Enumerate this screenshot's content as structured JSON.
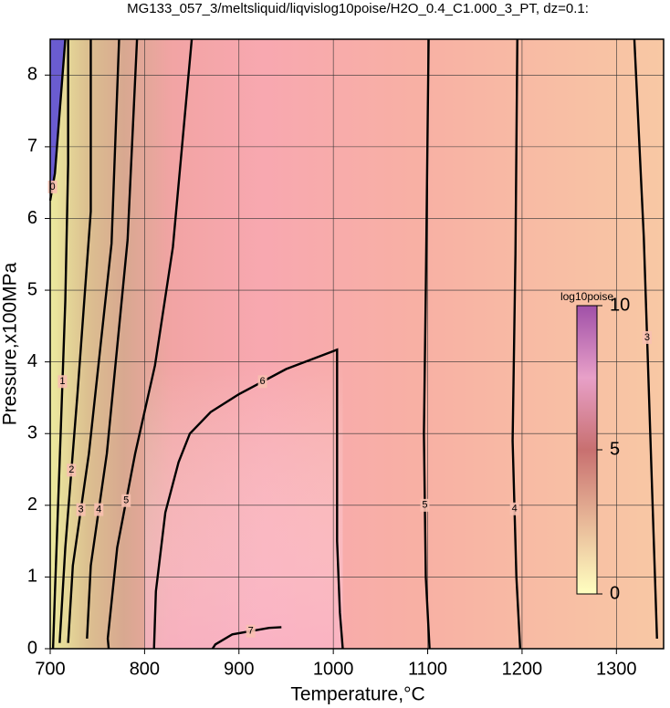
{
  "chart_data": {
    "type": "contour",
    "title": "MG133_057_3/meltsliquid/liqvislog10poise/H2O_0.4_C1.000_3_PT, dz=0.1:",
    "xlabel": "Temperature,°C",
    "ylabel": "Pressure,x100MPa",
    "xlim": [
      700,
      1350
    ],
    "ylim": [
      0,
      8.5
    ],
    "xticks": [
      700,
      800,
      900,
      1000,
      1100,
      1200,
      1300
    ],
    "yticks": [
      0,
      1,
      2,
      3,
      4,
      5,
      6,
      7,
      8
    ],
    "grid": true,
    "contours": [
      {
        "level": 0,
        "x": [
          716,
          705,
          700
        ],
        "y": [
          8.5,
          6.63,
          6.25
        ]
      },
      {
        "level": 1,
        "x": [
          719,
          719,
          716,
          710,
          705,
          703
        ],
        "y": [
          8.5,
          6.76,
          4.85,
          2.6,
          0.78,
          0
        ]
      },
      {
        "level": 2,
        "x": [
          743,
          743,
          729,
          716,
          710
        ],
        "y": [
          8.5,
          6.1,
          3.57,
          1.41,
          0.08
        ]
      },
      {
        "level": 3,
        "x": [
          773,
          765,
          741,
          724,
          719
        ],
        "y": [
          8.5,
          5.65,
          2.72,
          1.16,
          0.08
        ]
      },
      {
        "level": 4,
        "x": [
          792,
          782,
          760,
          743,
          739
        ],
        "y": [
          8.5,
          5.7,
          2.72,
          1.16,
          0.14
        ]
      },
      {
        "level": 5,
        "x": [
          850,
          830,
          811,
          790,
          771,
          761,
          762
        ],
        "y": [
          8.5,
          5.6,
          3.95,
          2.72,
          1.41,
          0.14,
          0
        ]
      },
      {
        "level": 6,
        "x": [
          810,
          812,
          822,
          836,
          848,
          870,
          900,
          950,
          1000,
          1004,
          1004,
          1004,
          1007,
          1010
        ],
        "y": [
          0,
          0.8,
          1.9,
          2.6,
          3.0,
          3.3,
          3.55,
          3.9,
          4.15,
          4.17,
          3,
          1.5,
          0.5,
          0
        ]
      },
      {
        "level": 7,
        "x": [
          872,
          875,
          893,
          932,
          945
        ],
        "y": [
          0,
          0.06,
          0.2,
          0.29,
          0.3
        ]
      },
      {
        "level": 5,
        "x": [
          1101,
          1098,
          1096,
          1098,
          1102
        ],
        "y": [
          8.5,
          5,
          3,
          1,
          0
        ]
      },
      {
        "level": 4,
        "x": [
          1195,
          1193,
          1190,
          1194,
          1198
        ],
        "y": [
          8.5,
          5.5,
          2.9,
          1,
          0
        ]
      },
      {
        "level": 3,
        "x": [
          1319,
          1329,
          1336,
          1343
        ],
        "y": [
          8.5,
          5.74,
          2.94,
          0.14
        ]
      }
    ],
    "colorbar": {
      "label": "log10poise",
      "lim": [
        0,
        10
      ],
      "ticks": [
        0,
        5,
        10
      ]
    }
  }
}
